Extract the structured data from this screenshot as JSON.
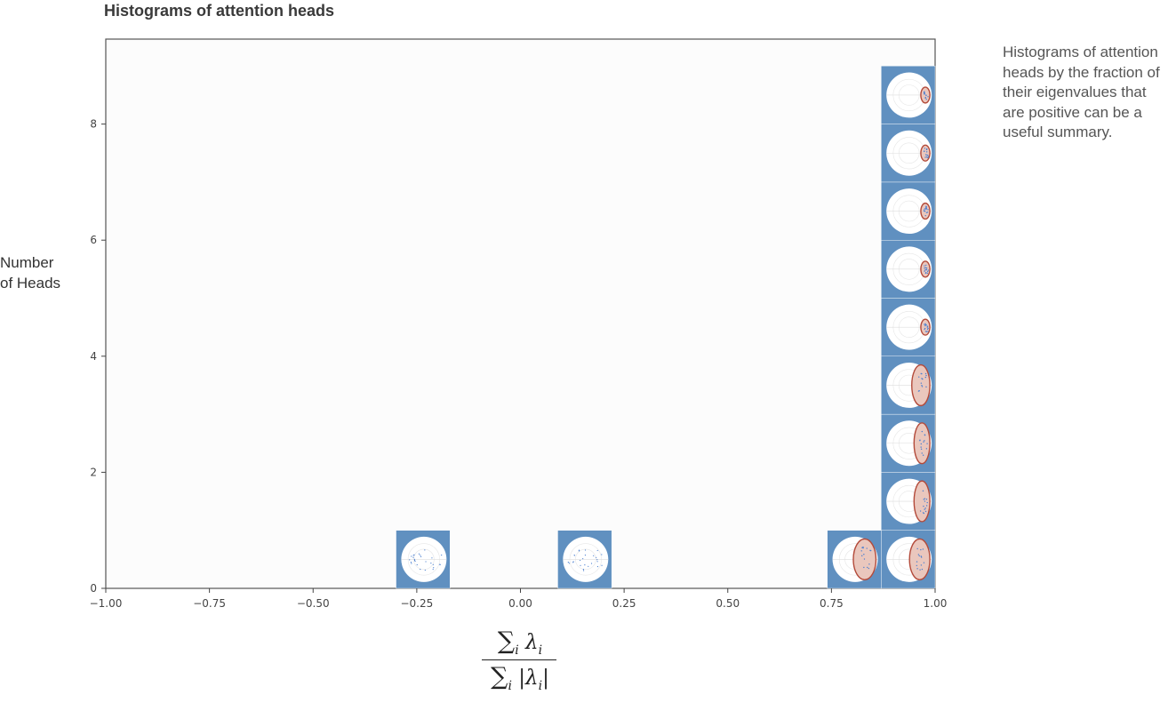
{
  "chart_data": {
    "type": "bar",
    "title": "Histograms of attention heads",
    "ylabel_lines": [
      "Number",
      "of Heads"
    ],
    "xlabel": "∑i λi / ∑i |λi|",
    "xlabel_parts": {
      "numerator_symbol": "∑",
      "numerator_sub": "i",
      "numerator_var": "λ",
      "numerator_var_sub": "i",
      "denominator_symbol": "∑",
      "denominator_sub": "i",
      "denominator_var": "|λ",
      "denominator_var_sub": "i",
      "denominator_close": "|"
    },
    "xlim": [
      -1.0,
      1.0
    ],
    "ylim": [
      0,
      9.5
    ],
    "x_ticks": [
      -1.0,
      -0.75,
      -0.5,
      -0.25,
      0.0,
      0.25,
      0.5,
      0.75,
      1.0
    ],
    "x_tick_labels": [
      "−1.00",
      "−0.75",
      "−0.50",
      "−0.25",
      "0.00",
      "0.25",
      "0.50",
      "0.75",
      "1.00"
    ],
    "y_ticks": [
      0,
      2,
      4,
      6,
      8
    ],
    "y_tick_labels": [
      "0",
      "2",
      "4",
      "6",
      "8"
    ],
    "bin_width": 0.13,
    "bins": [
      {
        "left": -0.3,
        "count": 1,
        "positive_fraction": [
          0.0
        ]
      },
      {
        "left": 0.09,
        "count": 1,
        "positive_fraction": [
          0.0
        ]
      },
      {
        "left": 0.74,
        "count": 1,
        "positive_fraction": [
          0.5
        ]
      },
      {
        "left": 0.87,
        "count": 9,
        "positive_fraction": [
          0.45,
          0.35,
          0.35,
          0.4,
          0.2,
          0.2,
          0.2,
          0.2,
          0.2
        ]
      }
    ],
    "grid": false,
    "legend": "none",
    "colors": {
      "bar": "#6090c0",
      "plot_background": "#fcfcfc",
      "circle": "#ffffff",
      "ellipse_fill": "#eac7bd",
      "ellipse_stroke": "#b34a3a",
      "dots": "#4a7fd0"
    }
  },
  "caption": "Histograms of attention heads by the fraction of their eigenvalues that are positive can be a useful summary."
}
